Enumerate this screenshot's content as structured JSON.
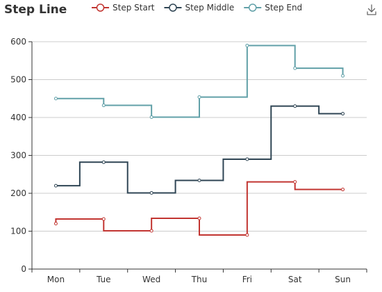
{
  "toolbar": {
    "download_icon": "download-icon"
  },
  "chart_data": {
    "type": "line",
    "subtype": "step",
    "title": "Step Line",
    "categories": [
      "Mon",
      "Tue",
      "Wed",
      "Thu",
      "Fri",
      "Sat",
      "Sun"
    ],
    "ylim": [
      0,
      600
    ],
    "yticks": [
      0,
      100,
      200,
      300,
      400,
      500,
      600
    ],
    "grid": true,
    "legend_position": "top-center",
    "series": [
      {
        "name": "Step Start",
        "step": "start",
        "color": "#c23531",
        "values": [
          120,
          132,
          101,
          134,
          90,
          230,
          210
        ]
      },
      {
        "name": "Step Middle",
        "step": "middle",
        "color": "#2f4554",
        "values": [
          220,
          282,
          201,
          234,
          290,
          430,
          410
        ]
      },
      {
        "name": "Step End",
        "step": "end",
        "color": "#61a0a8",
        "values": [
          450,
          432,
          401,
          454,
          590,
          530,
          510
        ]
      }
    ]
  }
}
